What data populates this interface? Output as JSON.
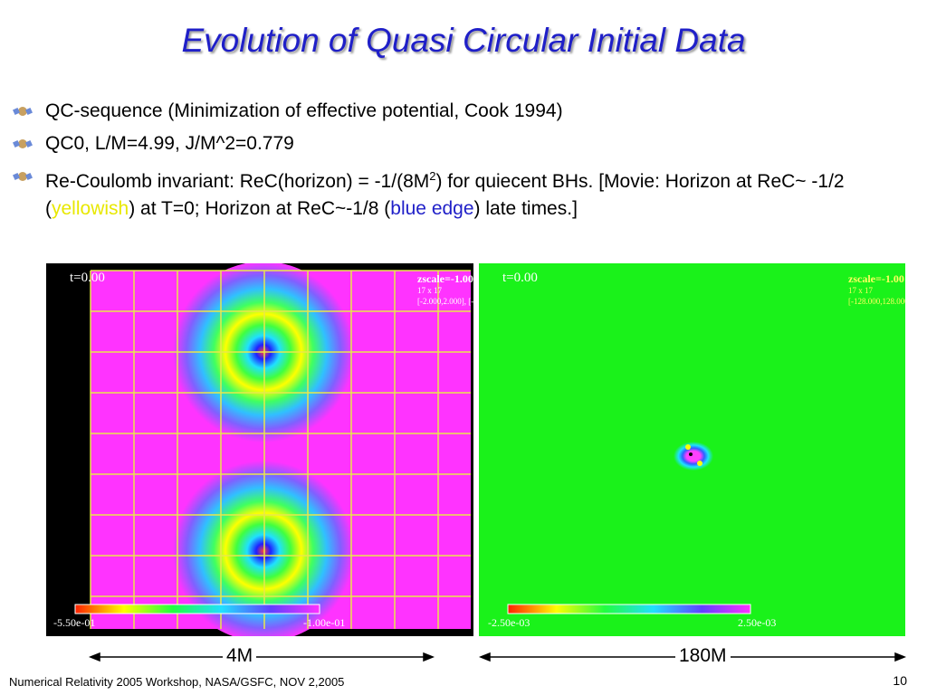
{
  "title": "Evolution of Quasi Circular Initial Data",
  "bullets": {
    "b1": "QC-sequence (Minimization of effective potential, Cook 1994)",
    "b2": "QC0, L/M=4.99, J/M^2=0.779",
    "b3": {
      "part1": "Re-Coulomb invariant: ReC(horizon) = -1/(8M",
      "sup": "2",
      "part2": ") for quiecent BHs. [Movie: Horizon at ReC~ -1/2 (",
      "yellow": "yellowish",
      "part3": ") at T=0;  Horizon at ReC~-1/8 (",
      "blue": "blue edge",
      "part4": ") late times.]"
    }
  },
  "left_panel": {
    "time": "t=0.00",
    "zscale": "zscale=-1.00",
    "grid_size": "17 x 17",
    "range": "[-2.000,2.000], [-2",
    "scale_min": "-5.50e-01",
    "scale_max": "-1.00e-01",
    "colors": {
      "background": "#ff33ff",
      "grid": "#e8e84a"
    }
  },
  "right_panel": {
    "time": "t=0.00",
    "zscale": "zscale=-1.00",
    "grid_size": "17 x 17",
    "range": "[-128.000,128.000",
    "scale_min": "-2.50e-03",
    "scale_max": "2.50e-03",
    "colors": {
      "background": "#1af21a"
    }
  },
  "captions": {
    "left": "4M",
    "right": "180M"
  },
  "footer": "Numerical Relativity 2005 Workshop, NASA/GSFC, NOV 2,2005",
  "page_number": "10",
  "icons": {
    "bullet": "satellite-icon"
  },
  "colors": {
    "title": "#1f1fc8",
    "highlight_yellow": "#e8e800",
    "highlight_blue": "#1f1fc8"
  }
}
